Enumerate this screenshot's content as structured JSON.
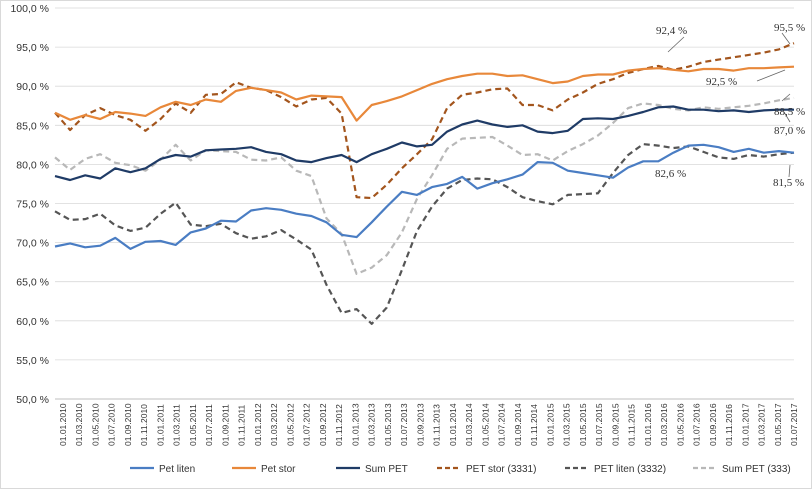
{
  "chart_data": {
    "type": "line",
    "ylim": [
      50,
      95
    ],
    "ytick_labels": [
      "50,0 %",
      "55,0 %",
      "60,0 %",
      "65,0 %",
      "70,0 %",
      "75,0 %",
      "80,0 %",
      "85,0 %",
      "90,0 %",
      "95,0 %",
      "100,0 %"
    ],
    "x_labels": [
      "01.01.2010",
      "01.03.2010",
      "01.05.2010",
      "01.07.2010",
      "01.09.2010",
      "01.11.2010",
      "01.01.2011",
      "01.03.2011",
      "01.05.2011",
      "01.07.2011",
      "01.09.2011",
      "01.11.2011",
      "01.01.2012",
      "01.03.2012",
      "01.05.2012",
      "01.07.2012",
      "01.09.2012",
      "01.11.2012",
      "01.01.2013",
      "01.03.2013",
      "01.05.2013",
      "01.07.2013",
      "01.09.2013",
      "01.11.2013",
      "01.01.2014",
      "01.03.2014",
      "01.05.2014",
      "01.07.2014",
      "01.09.2014",
      "01.11.2014",
      "01.01.2015",
      "01.03.2015",
      "01.05.2015",
      "01.07.2015",
      "01.09.2015",
      "01.11.2015",
      "01.01.2016",
      "01.03.2016",
      "01.05.2016",
      "01.07.2016",
      "01.09.2016",
      "01.11.2016",
      "01.01.2017",
      "01.03.2017",
      "01.05.2017",
      "01.07.2017"
    ],
    "grid": true,
    "legend_position": "bottom",
    "series": [
      {
        "name": "Pet liten",
        "color": "#4a7dc3",
        "dash": "solid",
        "values": [
          69.5,
          69.9,
          69.4,
          69.6,
          70.6,
          69.2,
          70.1,
          70.2,
          69.7,
          71.3,
          71.8,
          72.8,
          72.7,
          74.1,
          74.4,
          74.2,
          73.7,
          73.4,
          72.6,
          71.0,
          70.7,
          72.6,
          74.6,
          76.5,
          76.1,
          77.1,
          77.5,
          78.4,
          76.9,
          77.6,
          78.1,
          78.7,
          80.3,
          80.2,
          79.2,
          78.9,
          78.6,
          78.3,
          79.6,
          80.4,
          80.4,
          81.5,
          82.4,
          82.5,
          82.2,
          81.6,
          82.0,
          81.5,
          81.7,
          81.5
        ]
      },
      {
        "name": "Pet stor",
        "color": "#e8883a",
        "dash": "solid",
        "values": [
          86.6,
          85.7,
          86.3,
          85.8,
          86.7,
          86.5,
          86.2,
          87.3,
          88.0,
          87.6,
          88.3,
          88.0,
          89.4,
          89.8,
          89.5,
          89.2,
          88.3,
          88.8,
          88.7,
          88.6,
          85.6,
          87.6,
          88.1,
          88.7,
          89.5,
          90.3,
          90.9,
          91.3,
          91.6,
          91.6,
          91.3,
          91.4,
          90.9,
          90.4,
          90.6,
          91.3,
          91.5,
          91.5,
          92.0,
          92.2,
          92.3,
          92.1,
          91.9,
          92.2,
          92.2,
          92.0,
          92.3,
          92.3,
          92.4,
          92.5
        ]
      },
      {
        "name": "Sum PET",
        "color": "#1f3b66",
        "dash": "solid",
        "values": [
          78.5,
          78.0,
          78.6,
          78.2,
          79.5,
          79.0,
          79.5,
          80.7,
          81.2,
          81.0,
          81.8,
          81.9,
          82.0,
          82.2,
          81.6,
          81.3,
          80.5,
          80.3,
          80.8,
          81.2,
          80.3,
          81.3,
          82.0,
          82.8,
          82.3,
          82.5,
          84.2,
          85.1,
          85.6,
          85.1,
          84.8,
          85.0,
          84.2,
          84.0,
          84.3,
          85.8,
          85.9,
          85.8,
          86.2,
          86.7,
          87.3,
          87.4,
          87.0,
          87.0,
          86.8,
          86.9,
          86.7,
          86.9,
          87.0,
          87.0
        ]
      },
      {
        "name": "PET stor (3331)",
        "color": "#a3551d",
        "dash": "6,4",
        "values": [
          86.6,
          84.4,
          86.3,
          87.2,
          86.3,
          85.7,
          84.3,
          85.8,
          87.8,
          86.6,
          88.9,
          89.0,
          90.5,
          89.8,
          89.5,
          88.6,
          87.4,
          88.3,
          88.5,
          86.5,
          75.8,
          75.7,
          77.4,
          79.5,
          81.3,
          83.2,
          87.2,
          88.9,
          89.2,
          89.6,
          89.7,
          87.6,
          87.6,
          86.9,
          88.3,
          89.2,
          90.3,
          90.9,
          91.7,
          92.2,
          92.6,
          92.1,
          92.5,
          93.1,
          93.4,
          93.7,
          94.0,
          94.3,
          94.7,
          95.5
        ]
      },
      {
        "name": "PET liten (3332)",
        "color": "#555555",
        "dash": "6,4",
        "values": [
          74.0,
          72.9,
          73.0,
          73.7,
          72.2,
          71.5,
          71.9,
          73.7,
          75.1,
          72.3,
          72.1,
          72.4,
          71.2,
          70.5,
          70.8,
          71.6,
          70.4,
          69.1,
          64.6,
          61.0,
          61.5,
          59.6,
          61.7,
          66.5,
          71.5,
          74.6,
          76.9,
          78.0,
          78.2,
          78.1,
          77.1,
          75.8,
          75.3,
          74.9,
          76.1,
          76.2,
          76.3,
          78.9,
          81.2,
          82.6,
          82.4,
          82.1,
          82.3,
          81.6,
          80.9,
          80.7,
          81.2,
          81.0,
          81.3,
          81.5
        ]
      },
      {
        "name": "Sum PET  (333)",
        "color": "#b8b8b8",
        "dash": "6,4",
        "values": [
          80.9,
          79.3,
          80.7,
          81.3,
          80.2,
          79.9,
          79.2,
          80.6,
          82.5,
          80.5,
          81.8,
          81.7,
          81.6,
          80.6,
          80.5,
          80.9,
          79.2,
          78.5,
          73.1,
          71.1,
          66.0,
          66.8,
          68.4,
          71.3,
          75.6,
          78.6,
          82.0,
          83.3,
          83.4,
          83.5,
          82.4,
          81.2,
          81.3,
          80.5,
          81.7,
          82.6,
          83.7,
          85.3,
          87.2,
          87.8,
          87.6,
          87.1,
          86.9,
          87.3,
          87.1,
          87.3,
          87.5,
          87.8,
          88.2,
          88.5
        ]
      }
    ],
    "annotations": [
      "92,4 %",
      "95,5 %",
      "88,5 %",
      "92,5 %",
      "87,0 %",
      "82,6 %",
      "81,5 %"
    ]
  },
  "legend": {
    "items": [
      "Pet liten",
      "Pet stor",
      "Sum PET",
      "PET stor (3331)",
      "PET liten (3332)",
      "Sum PET  (333)"
    ]
  }
}
